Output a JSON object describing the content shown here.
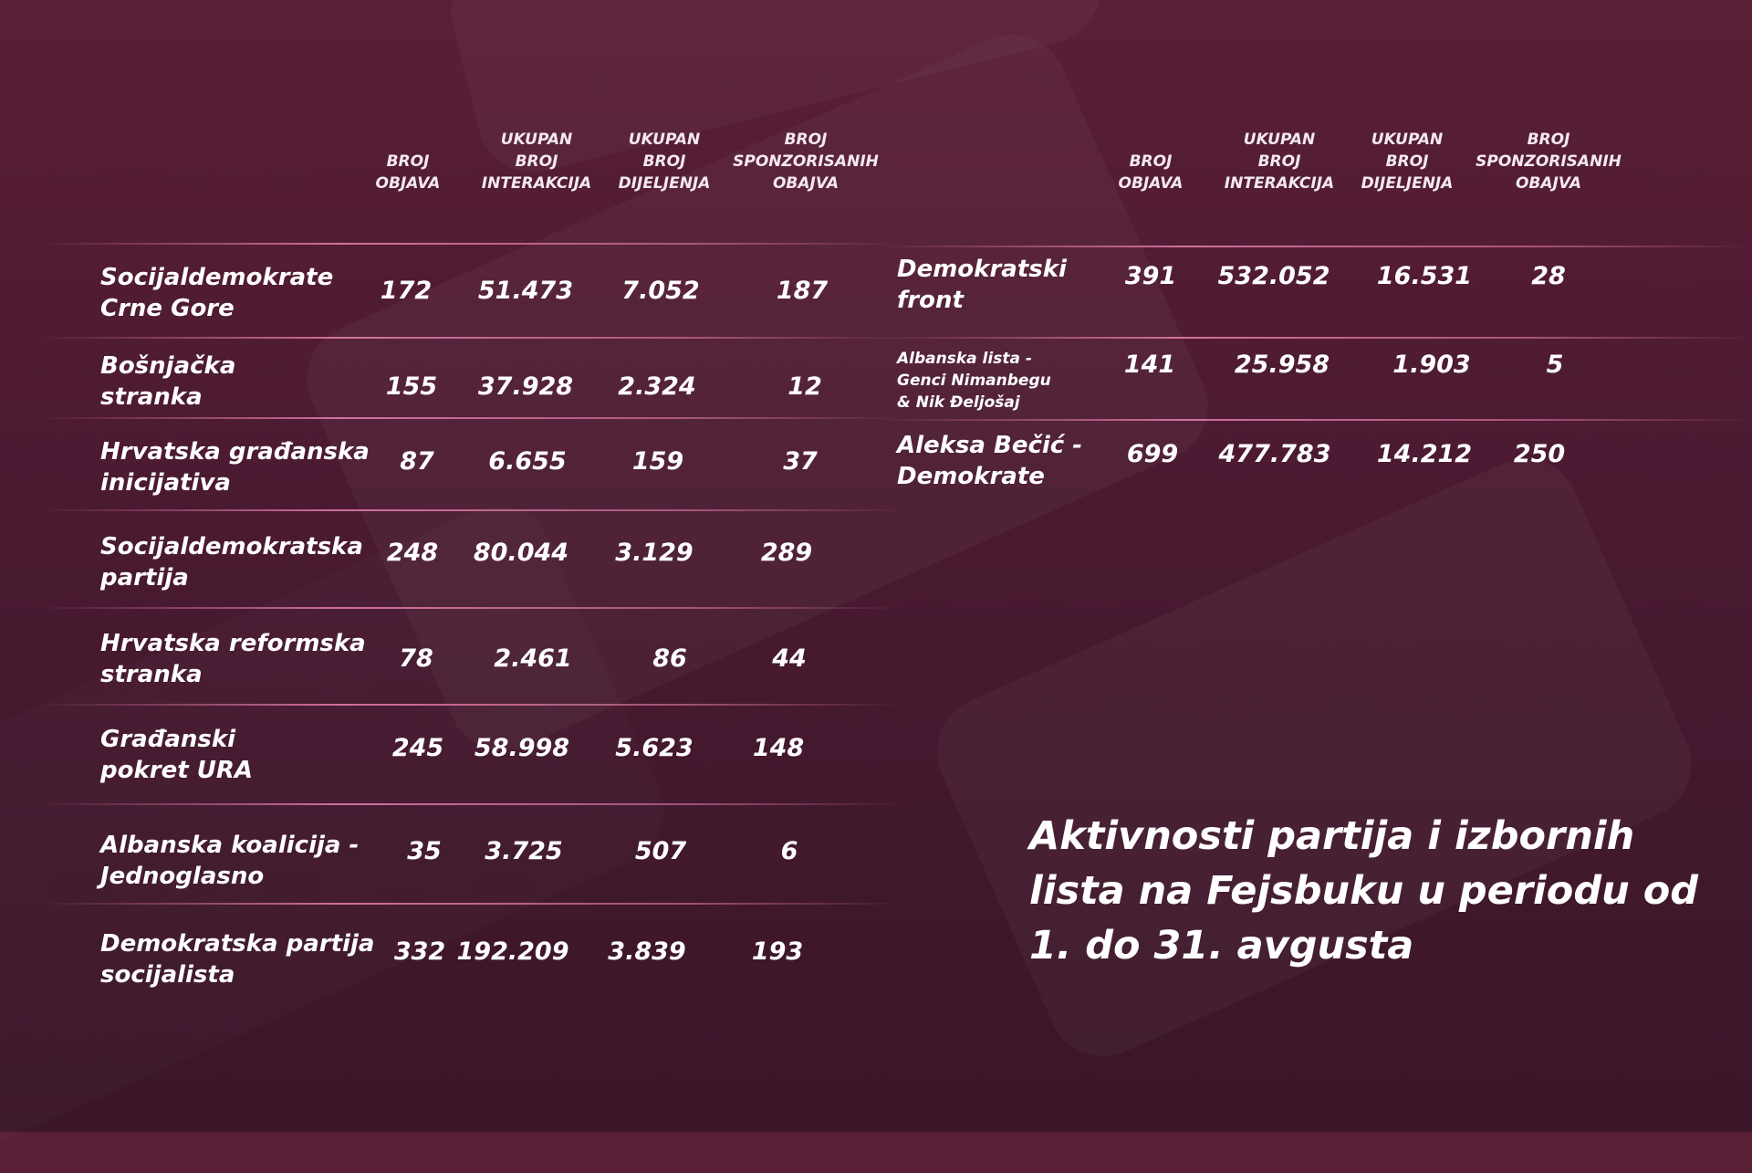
{
  "chart_data": {
    "type": "table",
    "title": "Aktivnosti partija i izbornih lista na Fejsbuku u periodu od 1. do 31. avgusta",
    "columns": [
      "BROJ\nOBJAVA",
      "UKUPAN\nBROJ\nINTERAKCIJA",
      "UKUPAN\nBROJ\nDIJELJENJA",
      "BROJ\nSPONZORISANIH\nOBAJVA"
    ],
    "left_rows": [
      {
        "party": "Socijaldemokrate\nCrne Gore",
        "values": [
          "172",
          "51.473",
          "7.052",
          "187"
        ]
      },
      {
        "party": "Bošnjačka\nstranka",
        "values": [
          "155",
          "37.928",
          "2.324",
          "12"
        ]
      },
      {
        "party": "Hrvatska građanska\ninicijativa",
        "values": [
          "87",
          "6.655",
          "159",
          "37"
        ]
      },
      {
        "party": "Socijaldemokratska\npartija",
        "values": [
          "248",
          "80.044",
          "3.129",
          "289"
        ]
      },
      {
        "party": "Hrvatska reformska\nstranka",
        "values": [
          "78",
          "2.461",
          "86",
          "44"
        ]
      },
      {
        "party": "Građanski\npokret URA",
        "values": [
          "245",
          "58.998",
          "5.623",
          "148"
        ]
      },
      {
        "party": "Albanska koalicija -\nJednoglasno",
        "values": [
          "35",
          "3.725",
          "507",
          "6"
        ]
      },
      {
        "party": "Demokratska partija\nsocijalista",
        "values": [
          "332",
          "192.209",
          "3.839",
          "193"
        ]
      }
    ],
    "right_rows": [
      {
        "party": "Demokratski\nfront",
        "values": [
          "391",
          "532.052",
          "16.531",
          "28"
        ]
      },
      {
        "party": "Albanska lista -\nGenci Nimanbegu\n& Nik Đeljošaj",
        "values": [
          "141",
          "25.958",
          "1.903",
          "5"
        ]
      },
      {
        "party": "Aleksa Bečić -\nDemokrate",
        "values": [
          "699",
          "477.783",
          "14.212",
          "250"
        ]
      }
    ]
  },
  "colors": {
    "background_top": "#5a1f36",
    "background_bottom": "#3a1628",
    "separator": "#ff8cbe",
    "text": "#ffffff"
  }
}
